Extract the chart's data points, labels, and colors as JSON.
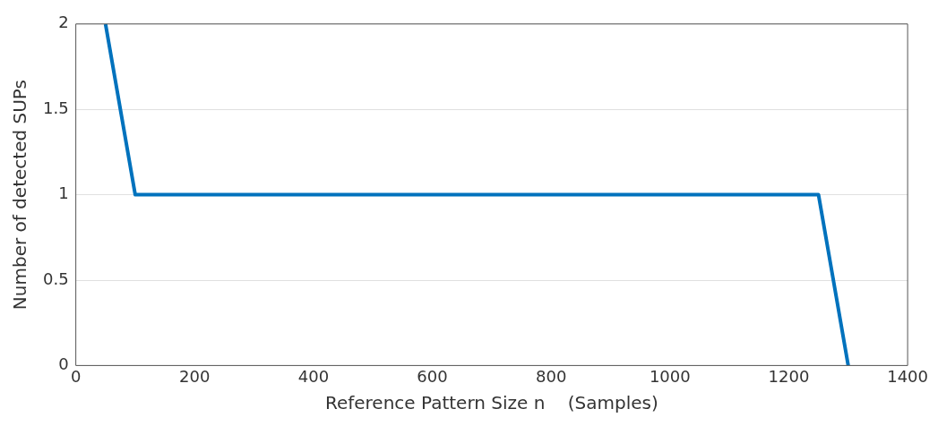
{
  "chart_data": {
    "type": "line",
    "xlabel": "Reference Pattern Size n    (Samples)",
    "ylabel": "Number of detected SUPs",
    "x": [
      50,
      100,
      1250,
      1300
    ],
    "series": [
      {
        "color": "#0072bd",
        "values": [
          2,
          1,
          1,
          0
        ]
      }
    ],
    "xlim": [
      0,
      1400
    ],
    "xticks": [
      0,
      200,
      400,
      600,
      800,
      1000,
      1200,
      1400
    ],
    "ylim": [
      0,
      2
    ],
    "yticks": [
      0,
      0.5,
      1,
      1.5,
      2
    ],
    "grid": "y",
    "legend": false,
    "marker": "none",
    "line_style": "solid"
  }
}
